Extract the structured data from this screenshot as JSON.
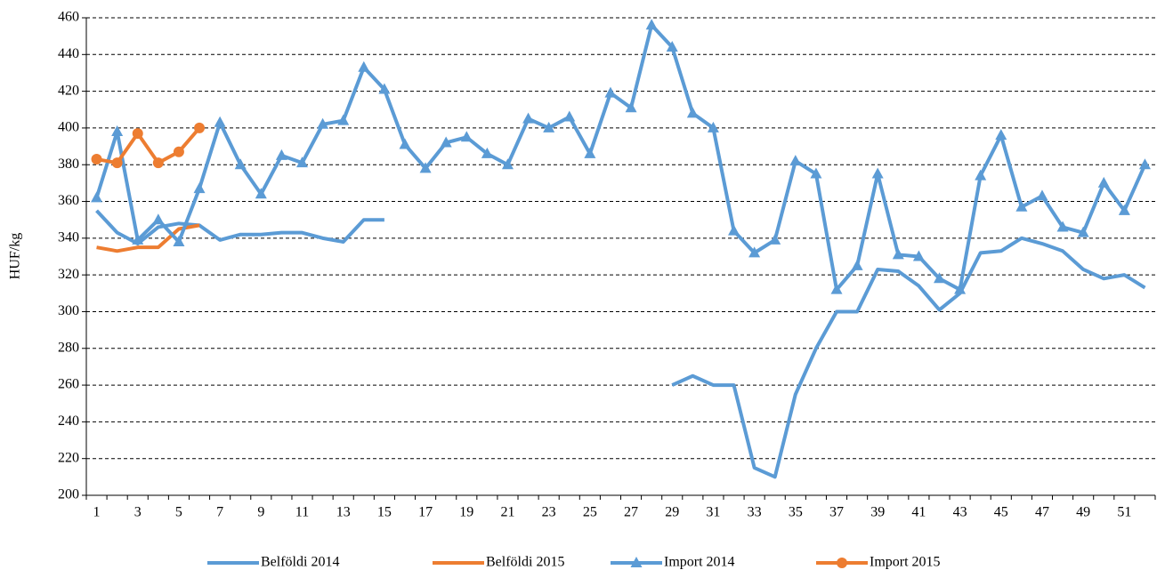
{
  "chart_data": {
    "type": "line",
    "y_label": "HUF/kg",
    "categories": [
      1,
      null,
      3,
      null,
      5,
      null,
      7,
      null,
      9,
      null,
      11,
      null,
      13,
      null,
      15,
      null,
      17,
      null,
      19,
      null,
      21,
      null,
      23,
      null,
      25,
      null,
      27,
      null,
      29,
      null,
      31,
      null,
      33,
      null,
      35,
      null,
      37,
      null,
      39,
      null,
      41,
      null,
      43,
      null,
      45,
      null,
      47,
      null,
      49,
      null,
      51,
      null
    ],
    "ylim": [
      200,
      460
    ],
    "yticks": [
      200,
      220,
      240,
      260,
      280,
      300,
      320,
      340,
      360,
      380,
      400,
      420,
      440,
      460
    ],
    "grid": true,
    "legend": "bottom",
    "series": [
      {
        "name": "Belföldi 2014",
        "color": "#5b9bd5",
        "marker": "none",
        "values": [
          355,
          343,
          337,
          346,
          348,
          347,
          339,
          342,
          342,
          343,
          343,
          340,
          338,
          350,
          350,
          null,
          null,
          null,
          null,
          null,
          null,
          null,
          null,
          null,
          null,
          null,
          null,
          null,
          260,
          265,
          260,
          260,
          215,
          210,
          255,
          280,
          300,
          300,
          323,
          322,
          314,
          301,
          310,
          332,
          333,
          340,
          337,
          333,
          323,
          318,
          320,
          313
        ]
      },
      {
        "name": "Belföldi 2015",
        "color": "#ed7d31",
        "marker": "none",
        "values": [
          335,
          333,
          335,
          335,
          345,
          347,
          null,
          null,
          null,
          null,
          null,
          null,
          null,
          null,
          null,
          null,
          null,
          null,
          null,
          null,
          null,
          null,
          null,
          null,
          null,
          null,
          null,
          null,
          null,
          null,
          null,
          null,
          null,
          null,
          null,
          null,
          null,
          null,
          null,
          null,
          null,
          null,
          null,
          null,
          null,
          null,
          null,
          null,
          null,
          null,
          null,
          null
        ]
      },
      {
        "name": "Import 2014",
        "color": "#5b9bd5",
        "marker": "triangle",
        "values": [
          362,
          398,
          339,
          350,
          338,
          367,
          403,
          380,
          364,
          385,
          381,
          402,
          404,
          433,
          421,
          391,
          378,
          392,
          395,
          386,
          380,
          405,
          400,
          406,
          386,
          419,
          411,
          456,
          444,
          408,
          400,
          344,
          332,
          339,
          382,
          375,
          312,
          325,
          375,
          331,
          330,
          318,
          312,
          374,
          396,
          357,
          363,
          346,
          343,
          370,
          355,
          380
        ]
      },
      {
        "name": "Import 2015",
        "color": "#ed7d31",
        "marker": "circle",
        "values": [
          383,
          381,
          397,
          381,
          387,
          400,
          null,
          null,
          null,
          null,
          null,
          null,
          null,
          null,
          null,
          null,
          null,
          null,
          null,
          null,
          null,
          null,
          null,
          null,
          null,
          null,
          null,
          null,
          null,
          null,
          null,
          null,
          null,
          null,
          null,
          null,
          null,
          null,
          null,
          null,
          null,
          null,
          null,
          null,
          null,
          null,
          null,
          null,
          null,
          null,
          null,
          null
        ]
      }
    ]
  }
}
